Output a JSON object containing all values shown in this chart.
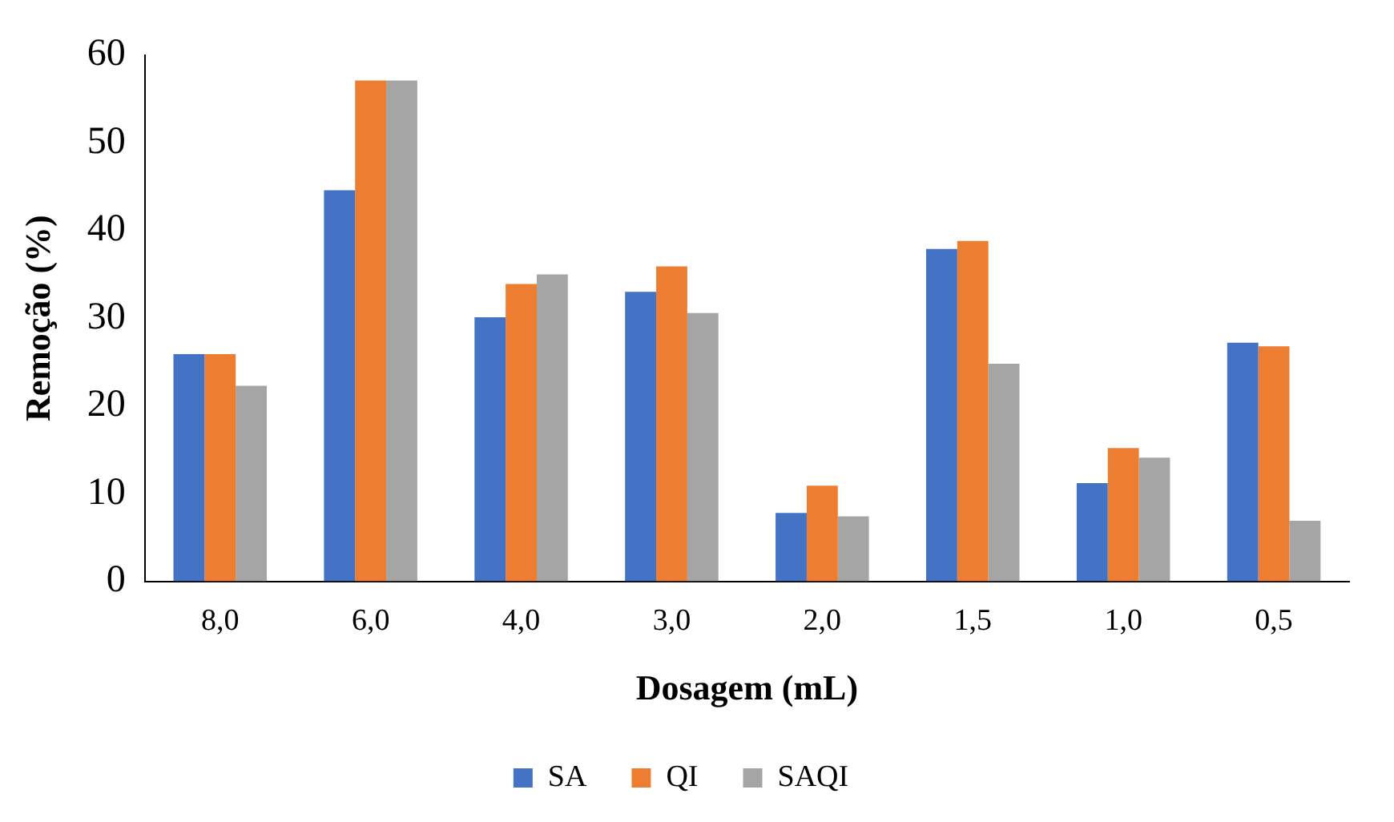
{
  "chart_data": {
    "type": "bar",
    "xlabel": "Dosagem (mL)",
    "ylabel": "Remoção (%)",
    "categories": [
      "8,0",
      "6,0",
      "4,0",
      "3,0",
      "2,0",
      "1,5",
      "1,0",
      "0,5"
    ],
    "series": [
      {
        "name": "SA",
        "color": "#4472c4",
        "values": [
          25.9,
          44.6,
          30.1,
          33.0,
          7.8,
          37.9,
          11.2,
          27.2
        ]
      },
      {
        "name": "QI",
        "color": "#ed7d31",
        "values": [
          25.9,
          57.1,
          33.9,
          35.9,
          10.9,
          38.8,
          15.2,
          26.8
        ]
      },
      {
        "name": "SAQI",
        "color": "#a5a5a5",
        "values": [
          22.3,
          57.1,
          35.0,
          30.6,
          7.4,
          24.8,
          14.1,
          6.9
        ]
      }
    ],
    "ylim": [
      0,
      60
    ],
    "yticks": [
      0,
      10,
      20,
      30,
      40,
      50,
      60
    ],
    "grid": false,
    "legend": "bottom"
  }
}
